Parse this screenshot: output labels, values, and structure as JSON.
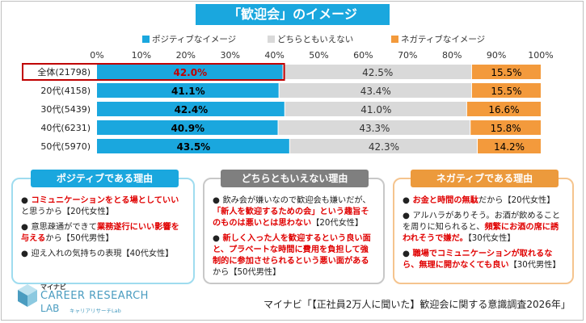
{
  "title": "「歓迎会」のイメージ",
  "legend": [
    {
      "label": "ポジティブなイメージ",
      "color": "#1aa7de"
    },
    {
      "label": "どちらともいえない",
      "color": "#d9d9d9"
    },
    {
      "label": "ネガティブなイメージ",
      "color": "#f39a3c"
    }
  ],
  "chart_data": {
    "type": "bar",
    "orientation": "horizontal",
    "stacked": true,
    "categories": [
      "全体(21798)",
      "20代(4158)",
      "30代(5439)",
      "40代(6231)",
      "50代(5970)"
    ],
    "series": [
      {
        "name": "ポジティブなイメージ",
        "values": [
          42.0,
          41.1,
          42.4,
          40.9,
          43.5
        ],
        "labels": [
          "42.0%",
          "41.1%",
          "42.4%",
          "40.9%",
          "43.5%"
        ]
      },
      {
        "name": "どちらともいえない",
        "values": [
          42.5,
          43.4,
          41.0,
          43.3,
          42.3
        ],
        "labels": [
          "42.5%",
          "43.4%",
          "41.0%",
          "43.3%",
          "42.3%"
        ]
      },
      {
        "name": "ネガティブなイメージ",
        "values": [
          15.5,
          15.5,
          16.6,
          15.8,
          14.2
        ],
        "labels": [
          "15.5%",
          "15.5%",
          "16.6%",
          "15.8%",
          "14.2%"
        ]
      }
    ],
    "xlim": [
      0,
      100
    ],
    "ticks": [
      "0%",
      "10%",
      "20%",
      "30%",
      "40%",
      "50%",
      "60%",
      "70%",
      "80%",
      "90%",
      "100%"
    ],
    "highlight_category": "全体(21798)",
    "highlight_color": "#c00000"
  },
  "boxes": [
    {
      "heading": "ポジティブである理由",
      "color": "#1aa7de",
      "border": "#9fdcef",
      "items": [
        [
          {
            "t": "● ",
            "d": true
          },
          {
            "t": "コミュニケーションをとる場としていい",
            "r": true
          },
          {
            "t": "と思うから【20代女性】"
          }
        ],
        [
          {
            "t": "● ",
            "d": true
          },
          {
            "t": "意思疎通ができて"
          },
          {
            "t": "業務遂行にいい影響を与える",
            "r": true
          },
          {
            "t": "から【50代男性】"
          }
        ],
        [
          {
            "t": "● ",
            "d": true
          },
          {
            "t": "迎え入れの気持ちの表現【40代女性】"
          }
        ]
      ]
    },
    {
      "heading": "どちらともいえない理由",
      "color": "#7f7f7f",
      "border": "#c8c8c8",
      "items": [
        [
          {
            "t": "● ",
            "d": true
          },
          {
            "t": "飲み会が嫌いなので歓迎会も嫌いだが、"
          },
          {
            "t": "「新人を歓迎するための会」という趣旨そのものは悪いとは思わない",
            "r": true
          },
          {
            "t": "【20代女性】"
          }
        ],
        [
          {
            "t": "● ",
            "d": true
          },
          {
            "t": "新しく入った人を歓迎するという良い面と、プラベートな時間に費用を負担して強制的に参加させられるという悪い面がある",
            "r": true
          },
          {
            "t": "から【50代男性】"
          }
        ]
      ]
    },
    {
      "heading": "ネガティブである理由",
      "color": "#ec9a3c",
      "border": "#f5c48e",
      "items": [
        [
          {
            "t": "● ",
            "d": true
          },
          {
            "t": "お金と時間の無駄",
            "r": true
          },
          {
            "t": "だから【20代女性】"
          }
        ],
        [
          {
            "t": "● ",
            "d": true
          },
          {
            "t": "アルハラがありそう。お酒が飲めることを周りに知られると、"
          },
          {
            "t": "頻繁にお酒の席に誘われそうで嫌だ。",
            "r": true
          },
          {
            "t": "【30代女性】"
          }
        ],
        [
          {
            "t": "● ",
            "d": true
          },
          {
            "t": "職場でコミュニケーションが取れるなら、無理に開かなくても良い",
            "r": true
          },
          {
            "t": "【30代男性】"
          }
        ]
      ]
    }
  ],
  "logo": {
    "brand": "マイナビ",
    "name": "CAREER RESEARCH",
    "lab": "LAB",
    "sub": "キャリアリサーチLab"
  },
  "source": "マイナビ「【正社員2万人に聞いた】歓迎会に関する意識調査2026年」"
}
